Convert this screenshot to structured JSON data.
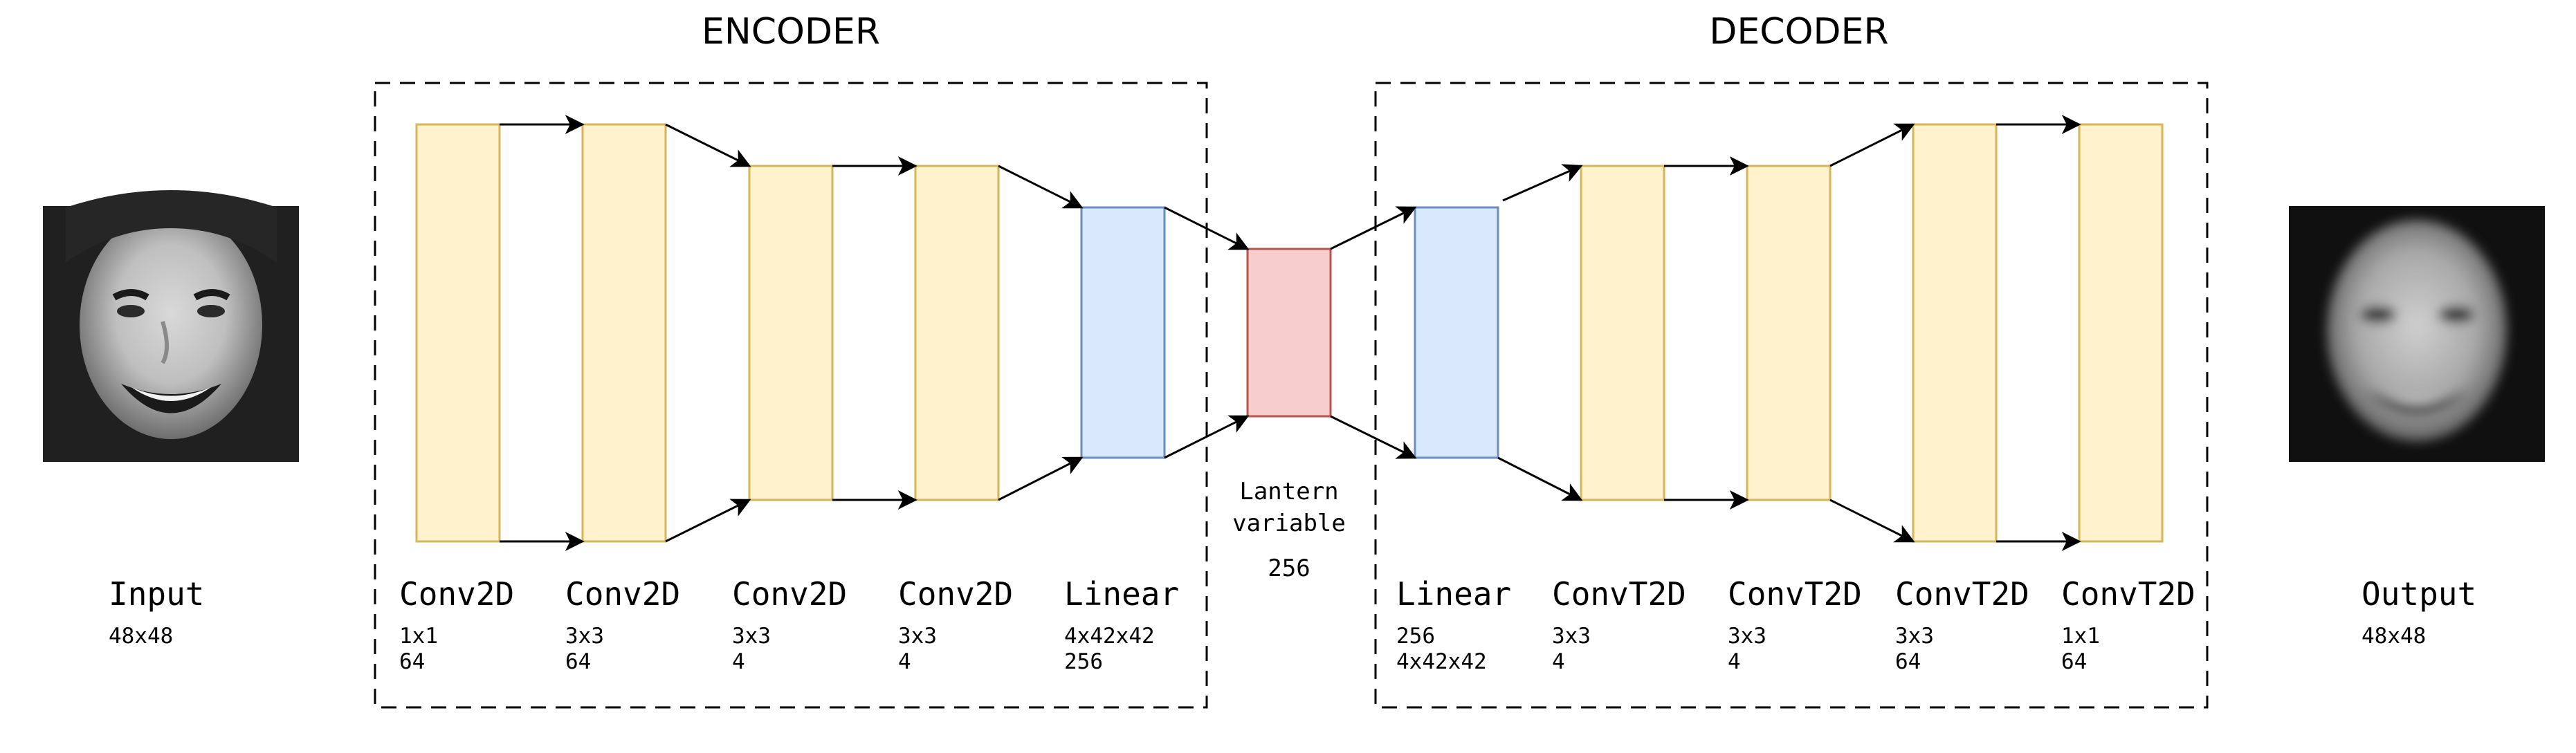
{
  "encoder": {
    "title": "ENCODER",
    "layers": [
      {
        "name": "Conv2D",
        "kernel": "1x1",
        "filters": "64"
      },
      {
        "name": "Conv2D",
        "kernel": "3x3",
        "filters": "64"
      },
      {
        "name": "Conv2D",
        "kernel": "3x3",
        "filters": "4"
      },
      {
        "name": "Conv2D",
        "kernel": "3x3",
        "filters": "4"
      },
      {
        "name": "Linear",
        "kernel": "4x42x42",
        "filters": "256"
      }
    ]
  },
  "latent": {
    "line1": "Lantern",
    "line2": "variable",
    "size": "256"
  },
  "decoder": {
    "title": "DECODER",
    "layers": [
      {
        "name": "Linear",
        "kernel": "256",
        "filters": "4x42x42"
      },
      {
        "name": "ConvT2D",
        "kernel": "3x3",
        "filters": "4"
      },
      {
        "name": "ConvT2D",
        "kernel": "3x3",
        "filters": "4"
      },
      {
        "name": "ConvT2D",
        "kernel": "3x3",
        "filters": "64"
      },
      {
        "name": "ConvT2D",
        "kernel": "1x1",
        "filters": "64"
      }
    ]
  },
  "input": {
    "label": "Input",
    "size": "48x48"
  },
  "output": {
    "label": "Output",
    "size": "48x48"
  },
  "colors": {
    "conv_fill": "#fff2cc",
    "conv_stroke": "#d6b656",
    "linear_fill": "#dae8fc",
    "linear_stroke": "#6c8ebf",
    "latent_fill": "#f8cecc",
    "latent_stroke": "#b85450"
  }
}
